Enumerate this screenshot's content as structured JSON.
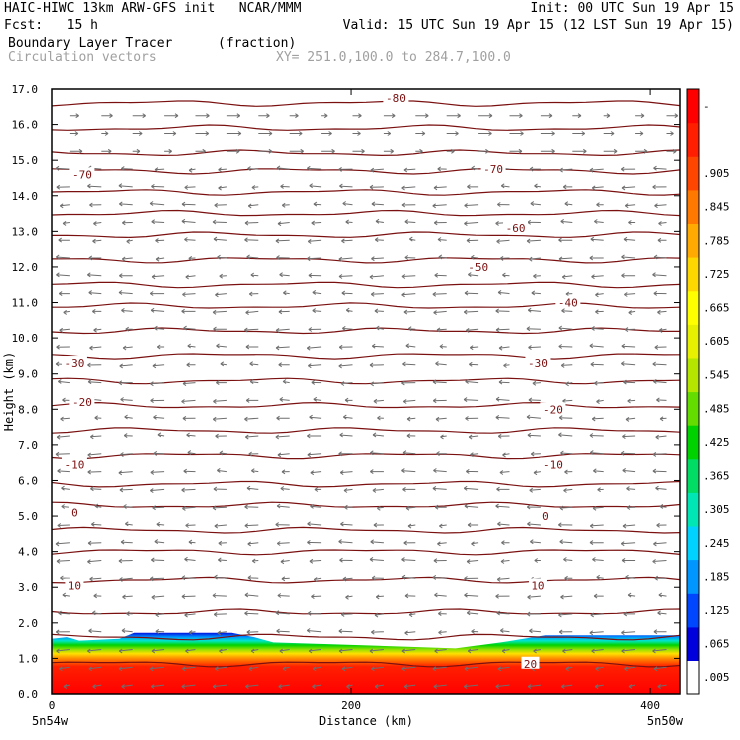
{
  "header": {
    "line1_left": "HAIC-HIWC 13km ARW-GFS init   NCAR/MMM",
    "line1_right": "Init: 00 UTC Sun 19 Apr 15",
    "line2_left": "Fcst:   15 h",
    "line2_right": "Valid: 15 UTC Sun 19 Apr 15 (12 LST Sun 19 Apr 15)",
    "field_name": "Boundary Layer Tracer",
    "field_units": "(fraction)",
    "overlay_name": "Circulation vectors",
    "xsec_endpoints": "XY= 251.0,100.0 to 284.7,100.0"
  },
  "colors": {
    "contour": "#7a1010",
    "vector": "#6e6e6e",
    "colorbar": [
      "#ffffff",
      "#0000dc",
      "#0046ff",
      "#0096ff",
      "#00d2ff",
      "#00e6b4",
      "#00dc64",
      "#00d200",
      "#64dc00",
      "#b4e600",
      "#e6f000",
      "#ffff00",
      "#ffd700",
      "#ffaa00",
      "#ff7800",
      "#ff4600",
      "#ff1e00",
      "#ff0000"
    ]
  },
  "chart_data": {
    "type": "cross-section",
    "ylabel": "Height (km)",
    "xlabel": "Distance (km)",
    "ylim": [
      0,
      17
    ],
    "xlim": [
      0,
      420
    ],
    "y_ticks": [
      "0.0",
      "1.0",
      "2.0",
      "3.0",
      "4.0",
      "5.0",
      "6.0",
      "7.0",
      "8.0",
      "9.0",
      "10.0",
      "11.0",
      "12.0",
      "13.0",
      "14.0",
      "15.0",
      "16.0",
      "17.0"
    ],
    "x_ticks": [
      {
        "x": 0,
        "label": "0"
      },
      {
        "x": 200,
        "label": "200"
      },
      {
        "x": 400,
        "label": "400"
      }
    ],
    "x_endpoint_labels": [
      "5n54w",
      "5n50w"
    ],
    "colorbar_labels": [
      ".005",
      ".065",
      ".125",
      ".185",
      ".245",
      ".305",
      ".365",
      ".425",
      ".485",
      ".545",
      ".605",
      ".665",
      ".725",
      ".785",
      ".845",
      ".905",
      "-"
    ],
    "isotherm_labels": [
      {
        "text": "-80",
        "x": 230,
        "z": 16.75
      },
      {
        "text": "-70",
        "x": 20,
        "z": 14.6
      },
      {
        "text": "-70",
        "x": 295,
        "z": 14.75
      },
      {
        "text": "-60",
        "x": 310,
        "z": 13.1
      },
      {
        "text": "-50",
        "x": 285,
        "z": 12.0
      },
      {
        "text": "-40",
        "x": 345,
        "z": 11.0
      },
      {
        "text": "-30",
        "x": 15,
        "z": 9.3
      },
      {
        "text": "-30",
        "x": 325,
        "z": 9.3
      },
      {
        "text": "-20",
        "x": 20,
        "z": 8.2
      },
      {
        "text": "-20",
        "x": 335,
        "z": 8.0
      },
      {
        "text": "-10",
        "x": 15,
        "z": 6.45
      },
      {
        "text": "-10",
        "x": 335,
        "z": 6.45
      },
      {
        "text": "0",
        "x": 15,
        "z": 5.1
      },
      {
        "text": "0",
        "x": 330,
        "z": 5.0
      },
      {
        "text": "10",
        "x": 15,
        "z": 3.05
      },
      {
        "text": "10",
        "x": 325,
        "z": 3.05
      },
      {
        "text": "20",
        "x": 320,
        "z": 0.85
      }
    ],
    "isotherm_levels_km": [
      0.85,
      1.6,
      2.3,
      3.2,
      4.0,
      4.6,
      5.3,
      5.9,
      6.7,
      7.4,
      8.1,
      8.8,
      9.5,
      10.2,
      10.9,
      11.5,
      12.2,
      12.9,
      13.5,
      14.1,
      14.7,
      15.2,
      15.9,
      16.6
    ],
    "boundary_layer_top": [
      {
        "x": 0,
        "z": 1.55
      },
      {
        "x": 10,
        "z": 1.6
      },
      {
        "x": 18,
        "z": 1.5
      },
      {
        "x": 45,
        "z": 1.55
      },
      {
        "x": 55,
        "z": 1.72
      },
      {
        "x": 120,
        "z": 1.72
      },
      {
        "x": 135,
        "z": 1.6
      },
      {
        "x": 148,
        "z": 1.45
      },
      {
        "x": 200,
        "z": 1.38
      },
      {
        "x": 270,
        "z": 1.28
      },
      {
        "x": 300,
        "z": 1.45
      },
      {
        "x": 330,
        "z": 1.65
      },
      {
        "x": 420,
        "z": 1.65
      }
    ]
  }
}
